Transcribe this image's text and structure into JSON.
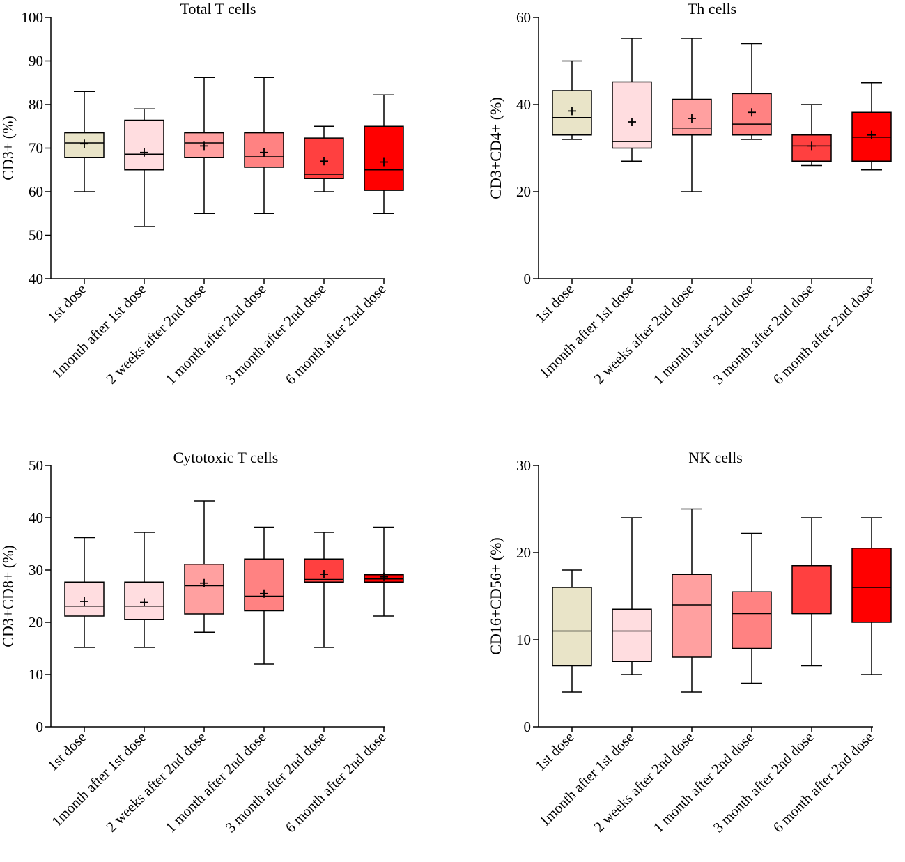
{
  "chart_data": [
    {
      "type": "boxplot",
      "title": "Total T cells",
      "ylabel": "CD3+ (%)",
      "xlabel": "",
      "ylim": [
        40,
        100
      ],
      "yticks": [
        40,
        50,
        60,
        70,
        80,
        90,
        100
      ],
      "categories": [
        "1st dose",
        "1month after 1st dose",
        "2 weeks after 2nd dose",
        "1 month after 2nd dose",
        "3 month after 2nd dose",
        "6 month after 2nd dose"
      ],
      "colors": [
        "#e9e4c8",
        "#ffdde0",
        "#ffa0a0",
        "#ff8282",
        "#ff4040",
        "#ff0000"
      ],
      "boxes": [
        {
          "min": 60,
          "q1": 67.8,
          "median": 71.2,
          "q3": 73.5,
          "max": 83,
          "mean": 71
        },
        {
          "min": 52,
          "q1": 65,
          "median": 68.6,
          "q3": 76.4,
          "max": 79,
          "mean": 69
        },
        {
          "min": 55,
          "q1": 67.8,
          "median": 71.2,
          "q3": 73.5,
          "max": 86.2,
          "mean": 70.5
        },
        {
          "min": 55,
          "q1": 65.6,
          "median": 68,
          "q3": 73.5,
          "max": 86.2,
          "mean": 69
        },
        {
          "min": 60,
          "q1": 63,
          "median": 64,
          "q3": 72.3,
          "max": 75,
          "mean": 67
        },
        {
          "min": 55,
          "q1": 60.3,
          "median": 65,
          "q3": 75,
          "max": 82.2,
          "mean": 66.8
        }
      ]
    },
    {
      "type": "boxplot",
      "title": "Th cells",
      "ylabel": "CD3+CD4+ (%)",
      "xlabel": "",
      "ylim": [
        0,
        60
      ],
      "yticks": [
        0,
        20,
        40,
        60
      ],
      "categories": [
        "1st dose",
        "1month after 1st dose",
        "2 weeks after 2nd dose",
        "1 month after 2nd dose",
        "3 month after 2nd dose",
        "6 month after 2nd dose"
      ],
      "colors": [
        "#e9e4c8",
        "#ffdde0",
        "#ffa0a0",
        "#ff8282",
        "#ff4040",
        "#ff0000"
      ],
      "boxes": [
        {
          "min": 32,
          "q1": 33,
          "median": 37,
          "q3": 43.2,
          "max": 50,
          "mean": 38.5
        },
        {
          "min": 27,
          "q1": 30,
          "median": 31.5,
          "q3": 45.2,
          "max": 55.2,
          "mean": 36
        },
        {
          "min": 20,
          "q1": 33,
          "median": 34.6,
          "q3": 41.2,
          "max": 55.2,
          "mean": 36.8
        },
        {
          "min": 32,
          "q1": 33,
          "median": 35.5,
          "q3": 42.5,
          "max": 54,
          "mean": 38.2
        },
        {
          "min": 26,
          "q1": 27,
          "median": 30.5,
          "q3": 33,
          "max": 40,
          "mean": 30.5
        },
        {
          "min": 25,
          "q1": 27,
          "median": 32.5,
          "q3": 38.2,
          "max": 45,
          "mean": 33
        }
      ]
    },
    {
      "type": "boxplot",
      "title": "Cytotoxic T cells",
      "ylabel": "CD3+CD8+ (%)",
      "xlabel": "",
      "ylim": [
        0,
        50
      ],
      "yticks": [
        0,
        10,
        20,
        30,
        40,
        50
      ],
      "categories": [
        "1st dose",
        "1month after 1st dose",
        "2 weeks after 2nd dose",
        "1 month after 2nd dose",
        "3 month after 2nd dose",
        "6 month after 2nd dose"
      ],
      "colors": [
        "#ffdde0",
        "#ffdde0",
        "#ffa0a0",
        "#ff8282",
        "#ff4040",
        "#ff0000"
      ],
      "boxes": [
        {
          "min": 15.2,
          "q1": 21.2,
          "median": 23.1,
          "q3": 27.7,
          "max": 36.2,
          "mean": 24
        },
        {
          "min": 15.2,
          "q1": 20.5,
          "median": 23.1,
          "q3": 27.7,
          "max": 37.2,
          "mean": 23.8
        },
        {
          "min": 18.1,
          "q1": 21.6,
          "median": 27,
          "q3": 31.1,
          "max": 43.2,
          "mean": 27.5
        },
        {
          "min": 12,
          "q1": 22.2,
          "median": 25,
          "q3": 32.1,
          "max": 38.2,
          "mean": 25.5
        },
        {
          "min": 15.2,
          "q1": 27.7,
          "median": 28.2,
          "q3": 32.1,
          "max": 37.2,
          "mean": 29.2
        },
        {
          "min": 21.2,
          "q1": 27.7,
          "median": 28.3,
          "q3": 29.1,
          "max": 38.2,
          "mean": 28.7
        }
      ]
    },
    {
      "type": "boxplot",
      "title": "NK cells",
      "ylabel": "CD16+CD56+ (%)",
      "xlabel": "",
      "ylim": [
        0,
        30
      ],
      "yticks": [
        0,
        10,
        20,
        30
      ],
      "categories": [
        "1st dose",
        "1month after 1st dose",
        "2 weeks after 2nd dose",
        "1 month after 2nd dose",
        "3 month after 2nd dose",
        "6 month after 2nd dose"
      ],
      "colors": [
        "#e9e4c8",
        "#ffdde0",
        "#ffa0a0",
        "#ff8282",
        "#ff4040",
        "#ff0000"
      ],
      "boxes": [
        {
          "min": 4,
          "q1": 7,
          "median": 11,
          "q3": 16,
          "max": 18
        },
        {
          "min": 6,
          "q1": 7.5,
          "median": 11,
          "q3": 13.5,
          "max": 24
        },
        {
          "min": 4,
          "q1": 8,
          "median": 14,
          "q3": 17.5,
          "max": 25
        },
        {
          "min": 5,
          "q1": 9,
          "median": 13,
          "q3": 15.5,
          "max": 22.2
        },
        {
          "min": 7,
          "q1": 13,
          "median": 13,
          "q3": 18.5,
          "max": 24
        },
        {
          "min": 6,
          "q1": 12,
          "median": 16,
          "q3": 20.5,
          "max": 24
        }
      ]
    }
  ]
}
